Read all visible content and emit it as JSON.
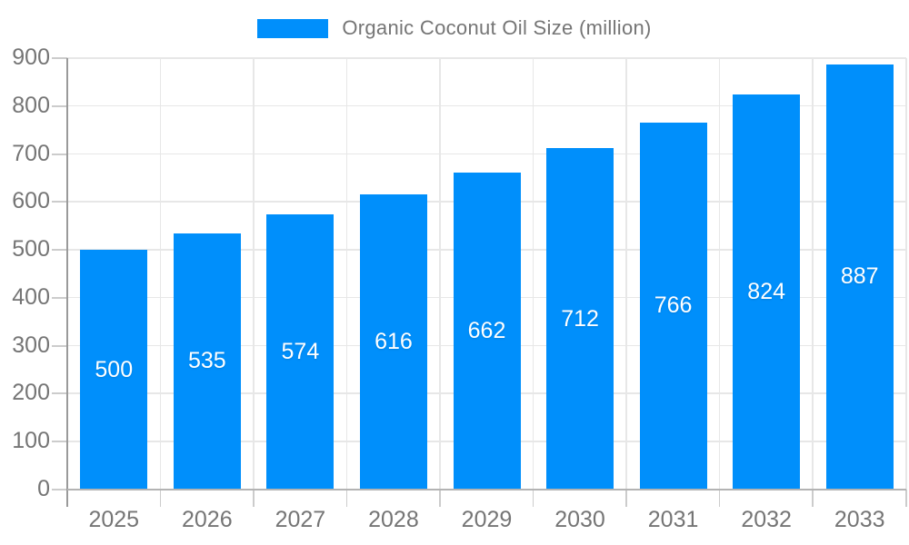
{
  "chart_data": {
    "type": "bar",
    "title": "Organic Coconut Oil Size (million)",
    "legend_position": "top",
    "categories": [
      "2025",
      "2026",
      "2027",
      "2028",
      "2029",
      "2030",
      "2031",
      "2032",
      "2033"
    ],
    "series": [
      {
        "name": "Organic Coconut Oil Size (million)",
        "values": [
          500,
          535,
          574,
          616,
          662,
          712,
          766,
          824,
          887
        ]
      }
    ],
    "value_labels_shown": true,
    "xlabel": "",
    "ylabel": "",
    "ylim": [
      0,
      900
    ],
    "ytick_step": 100,
    "yticks": [
      "0",
      "100",
      "200",
      "300",
      "400",
      "500",
      "600",
      "700",
      "800",
      "900"
    ],
    "grid": "horizontal and vertical category boundaries",
    "colors": {
      "bar": "#008FFB",
      "axis_label_text": "#757575",
      "legend_text": "#757575",
      "value_label_text": "#ffffff",
      "gridline": "#e7e7e7",
      "x_axis_line": "#b3b3b3",
      "y_axis_line": "#9a9a9a",
      "tick": "#cccccc",
      "background": "#ffffff"
    }
  }
}
